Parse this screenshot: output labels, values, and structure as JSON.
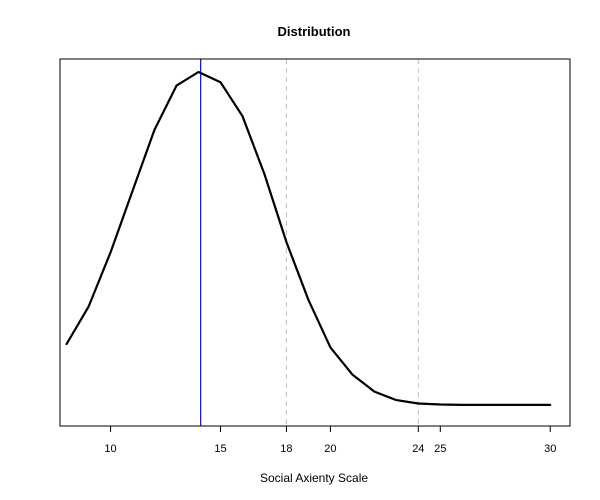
{
  "chart_data": {
    "type": "line",
    "title": "Distribution",
    "xlabel": "Social Axienty Scale",
    "ylabel": "",
    "xlim": [
      7.7,
      30.9
    ],
    "ylim": [
      0,
      1
    ],
    "grid": false,
    "legend": "none",
    "x_ticks": [
      10,
      15,
      18,
      20,
      24,
      25,
      30
    ],
    "series": [
      {
        "color": "#000000",
        "x": [
          8,
          9,
          10,
          11,
          12,
          13,
          14,
          15,
          16,
          17,
          18,
          19,
          20,
          21,
          22,
          23,
          24,
          25,
          26,
          27,
          28,
          29,
          30
        ],
        "y": [
          0.2,
          0.31,
          0.47,
          0.65,
          0.83,
          0.96,
          1.0,
          0.97,
          0.87,
          0.7,
          0.5,
          0.33,
          0.19,
          0.11,
          0.06,
          0.035,
          0.025,
          0.022,
          0.021,
          0.021,
          0.021,
          0.021,
          0.021
        ]
      }
    ],
    "vlines": [
      {
        "x": 14.1,
        "color": "#0000ff",
        "style": "solid"
      },
      {
        "x": 18,
        "color": "#c0c0c0",
        "style": "dashed"
      },
      {
        "x": 24,
        "color": "#c0c0c0",
        "style": "dashed"
      }
    ]
  }
}
